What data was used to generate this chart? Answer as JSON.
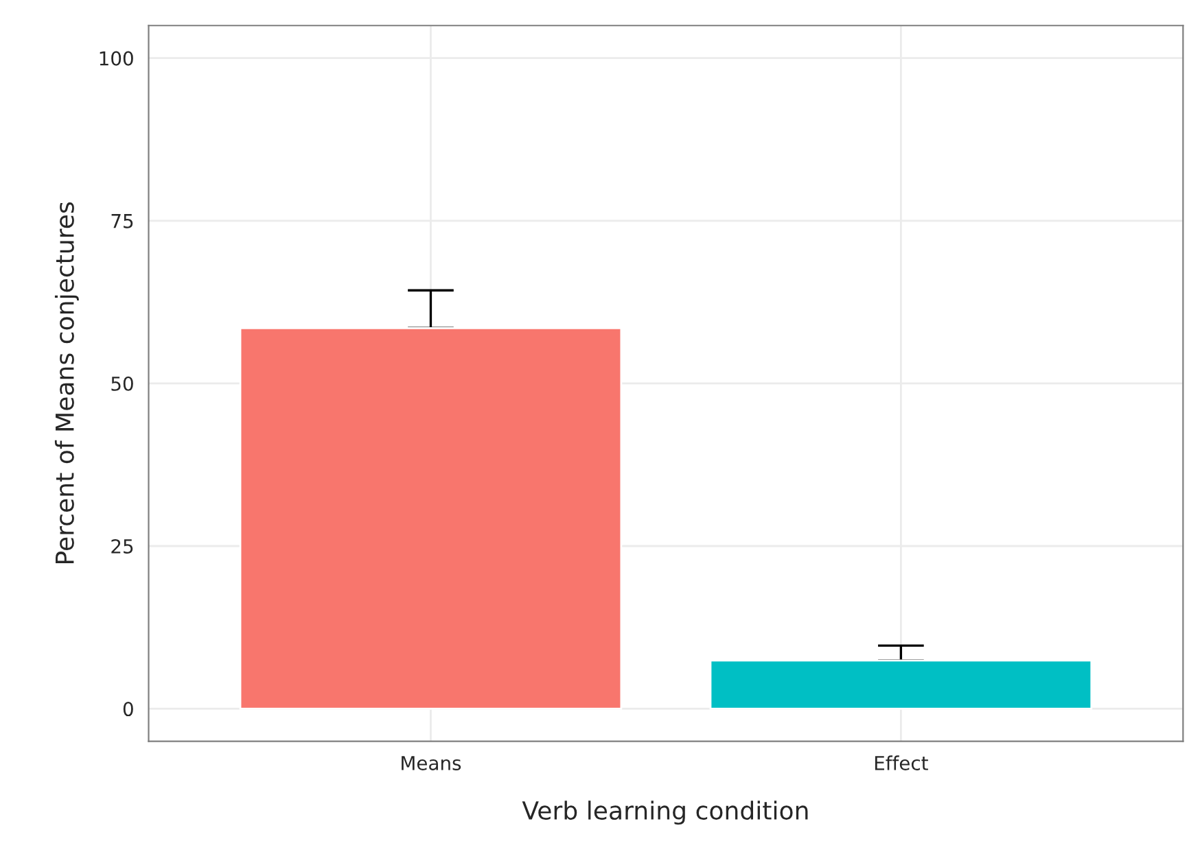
{
  "chart_data": {
    "type": "bar",
    "xlabel": "Verb learning condition",
    "ylabel": "Percent of Means conjectures",
    "categories": [
      "Means",
      "Effect"
    ],
    "values": [
      58.5,
      7.4
    ],
    "colors": [
      "#f8766d",
      "#00bfc4"
    ],
    "errors": [
      [
        58.5,
        64.3
      ],
      [
        7.4,
        9.7
      ]
    ],
    "ylim": [
      -5,
      105
    ],
    "yticks": [
      0,
      25,
      50,
      75,
      100
    ],
    "grid": true
  }
}
